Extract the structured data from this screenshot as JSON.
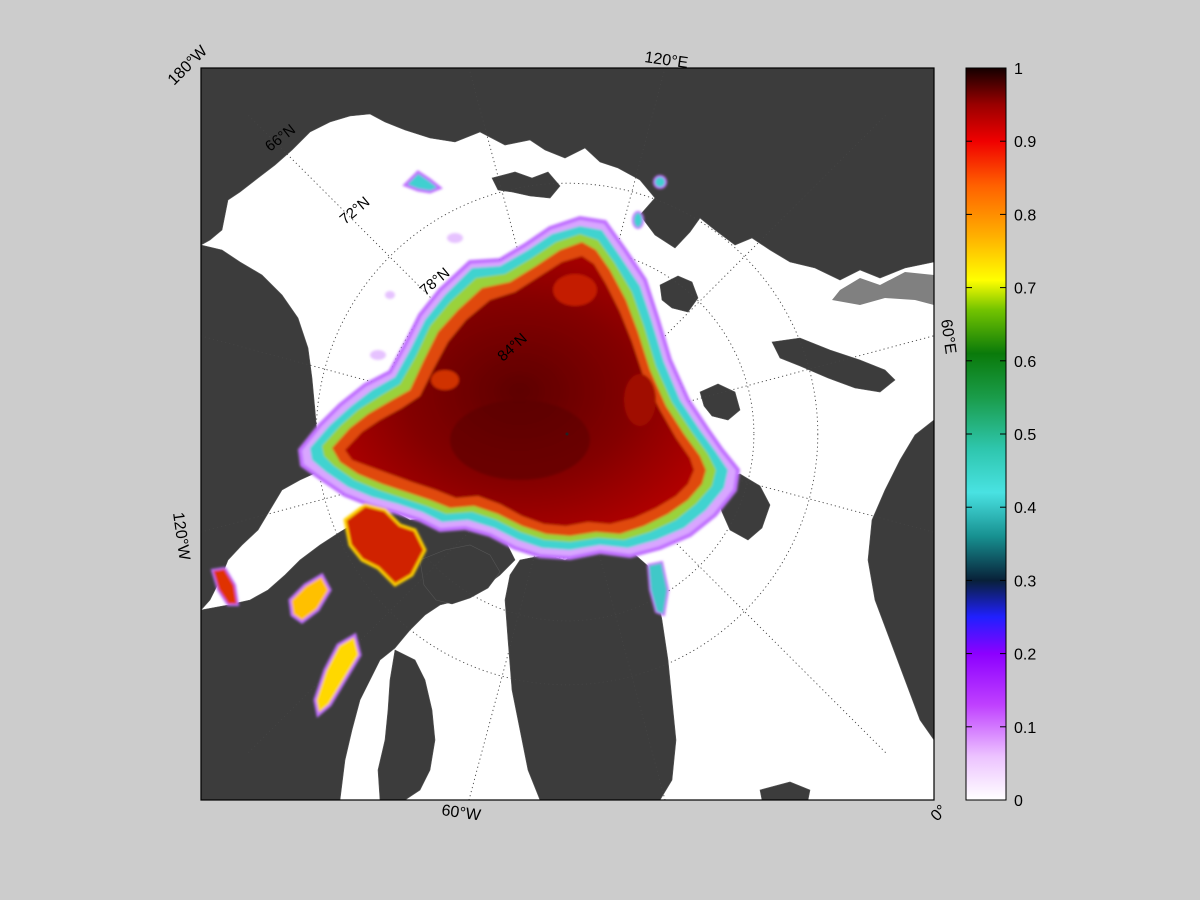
{
  "map": {
    "projection": "north-polar-stereographic",
    "variable": "sea ice concentration",
    "background_color": "#cccccc",
    "ocean_color": "#ffffff",
    "land_color": "#3c3c3c",
    "frame_color": "#000000",
    "lon_labels": [
      {
        "id": "lon-180w",
        "text": "180°W",
        "lon": 180
      },
      {
        "id": "lon-120e",
        "text": "120°E",
        "lon": 120
      },
      {
        "id": "lon-60e",
        "text": "60°E",
        "lon": 60
      },
      {
        "id": "lon-0",
        "text": "0°",
        "lon": 0
      },
      {
        "id": "lon-60w",
        "text": "60°W",
        "lon": -60
      },
      {
        "id": "lon-120w",
        "text": "120°W",
        "lon": -120
      }
    ],
    "lat_labels": [
      {
        "id": "lat-66n",
        "text": "66°N",
        "lat": 66
      },
      {
        "id": "lat-72n",
        "text": "72°N",
        "lat": 72
      },
      {
        "id": "lat-78n",
        "text": "78°N",
        "lat": 78
      },
      {
        "id": "lat-84n",
        "text": "84°N",
        "lat": 84
      }
    ],
    "graticule_lats": [
      66,
      72,
      78,
      84
    ],
    "graticule_lons": [
      0,
      30,
      60,
      90,
      120,
      150,
      180,
      210,
      240,
      270,
      300,
      330
    ]
  },
  "colorbar": {
    "min": 0,
    "max": 1,
    "tick_labels": [
      "0",
      "0.1",
      "0.2",
      "0.3",
      "0.4",
      "0.5",
      "0.6",
      "0.7",
      "0.8",
      "0.9",
      "1"
    ],
    "stops": [
      {
        "v": 0.0,
        "color": "#ffffff"
      },
      {
        "v": 0.06,
        "color": "#ecc2ff"
      },
      {
        "v": 0.13,
        "color": "#bf40ff"
      },
      {
        "v": 0.2,
        "color": "#8c00ff"
      },
      {
        "v": 0.25,
        "color": "#2020ff"
      },
      {
        "v": 0.3,
        "color": "#082038"
      },
      {
        "v": 0.36,
        "color": "#179090"
      },
      {
        "v": 0.42,
        "color": "#49e2e2"
      },
      {
        "v": 0.48,
        "color": "#2ec6ad"
      },
      {
        "v": 0.55,
        "color": "#1a9c4a"
      },
      {
        "v": 0.61,
        "color": "#0a7a0a"
      },
      {
        "v": 0.67,
        "color": "#74c400"
      },
      {
        "v": 0.71,
        "color": "#ffff00"
      },
      {
        "v": 0.77,
        "color": "#ffb000"
      },
      {
        "v": 0.84,
        "color": "#ff6000"
      },
      {
        "v": 0.9,
        "color": "#f00000"
      },
      {
        "v": 0.95,
        "color": "#9a0000"
      },
      {
        "v": 1.0,
        "color": "#140000"
      }
    ]
  }
}
